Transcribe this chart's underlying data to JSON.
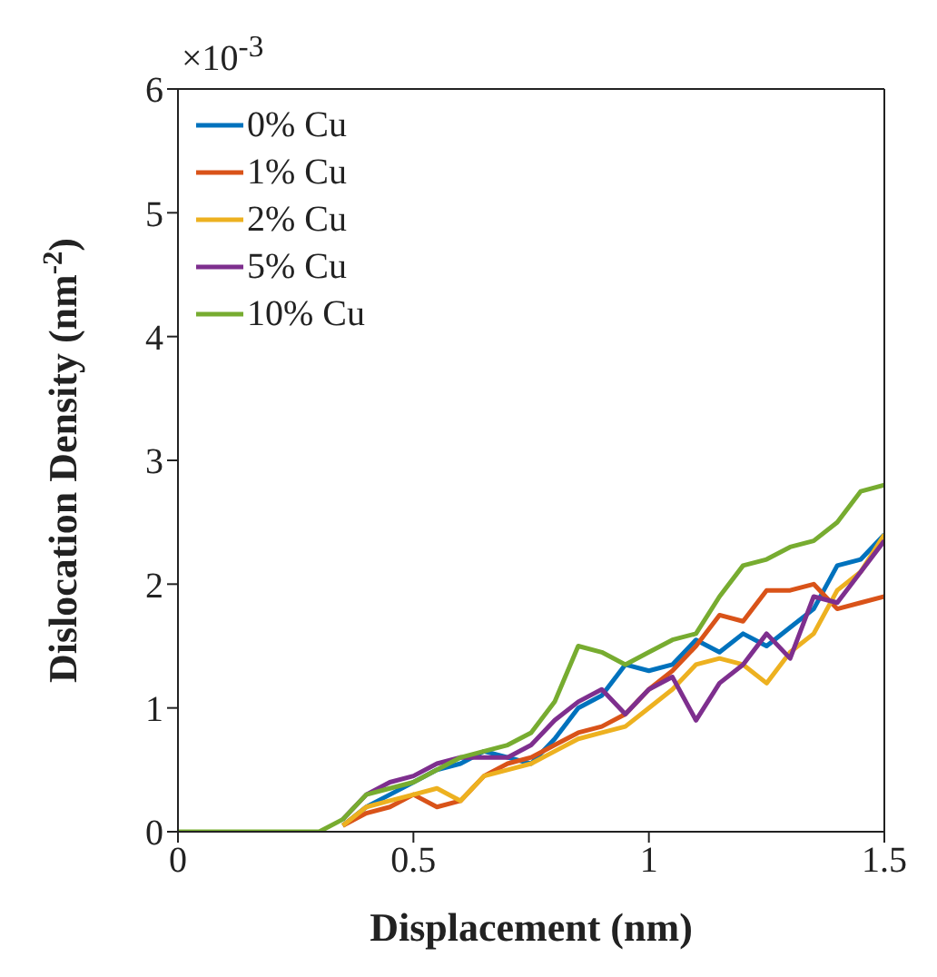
{
  "chart_data": {
    "type": "line",
    "xlabel": "Displacement (nm)",
    "ylabel": "Dislocation Density (nm$^{-2}$)",
    "annotations": [
      "×10$^{-3}$"
    ],
    "x": [
      0,
      0.3,
      0.35,
      0.4,
      0.45,
      0.5,
      0.55,
      0.6,
      0.65,
      0.7,
      0.75,
      0.8,
      0.85,
      0.9,
      0.95,
      1.0,
      1.05,
      1.1,
      1.15,
      1.2,
      1.25,
      1.3,
      1.35,
      1.4,
      1.45,
      1.5
    ],
    "series": [
      {
        "name": "0% Cu",
        "color": "#0072bd",
        "values": [
          null,
          null,
          0.05,
          0.2,
          0.3,
          0.4,
          0.5,
          0.55,
          0.65,
          0.6,
          0.55,
          0.75,
          1.0,
          1.1,
          1.35,
          1.3,
          1.35,
          1.55,
          1.45,
          1.6,
          1.5,
          1.65,
          1.8,
          2.15,
          2.2,
          2.4
        ]
      },
      {
        "name": "1% Cu",
        "color": "#d95319",
        "values": [
          null,
          null,
          0.05,
          0.15,
          0.2,
          0.3,
          0.2,
          0.25,
          0.45,
          0.55,
          0.6,
          0.7,
          0.8,
          0.85,
          0.95,
          1.15,
          1.3,
          1.5,
          1.75,
          1.7,
          1.95,
          1.95,
          2.0,
          1.8,
          1.85,
          1.9
        ]
      },
      {
        "name": "2% Cu",
        "color": "#edb120",
        "values": [
          null,
          null,
          0.05,
          0.2,
          0.25,
          0.3,
          0.35,
          0.25,
          0.45,
          0.5,
          0.55,
          0.65,
          0.75,
          0.8,
          0.85,
          1.0,
          1.15,
          1.35,
          1.4,
          1.35,
          1.2,
          1.45,
          1.6,
          1.95,
          2.1,
          2.4
        ]
      },
      {
        "name": "5% Cu",
        "color": "#7e2f8e",
        "values": [
          null,
          null,
          0.1,
          0.3,
          0.4,
          0.45,
          0.55,
          0.6,
          0.6,
          0.6,
          0.7,
          0.9,
          1.05,
          1.15,
          0.95,
          1.15,
          1.25,
          0.9,
          1.2,
          1.35,
          1.6,
          1.4,
          1.9,
          1.85,
          2.1,
          2.35
        ]
      },
      {
        "name": "10% Cu",
        "color": "#77ac30",
        "values": [
          0,
          0,
          0.1,
          0.3,
          0.35,
          0.4,
          0.5,
          0.6,
          0.65,
          0.7,
          0.8,
          1.05,
          1.5,
          1.45,
          1.35,
          1.45,
          1.55,
          1.6,
          1.9,
          2.15,
          2.2,
          2.3,
          2.35,
          2.5,
          2.75,
          2.8
        ]
      }
    ],
    "xlim": [
      0,
      1.5
    ],
    "xticks": [
      0,
      0.5,
      1,
      1.5
    ],
    "ylim": [
      0,
      6
    ],
    "yticks": [
      0,
      1,
      2,
      3,
      4,
      5,
      6
    ],
    "legend": "top left",
    "grid": false,
    "marker": "none",
    "line_style": "solid"
  }
}
